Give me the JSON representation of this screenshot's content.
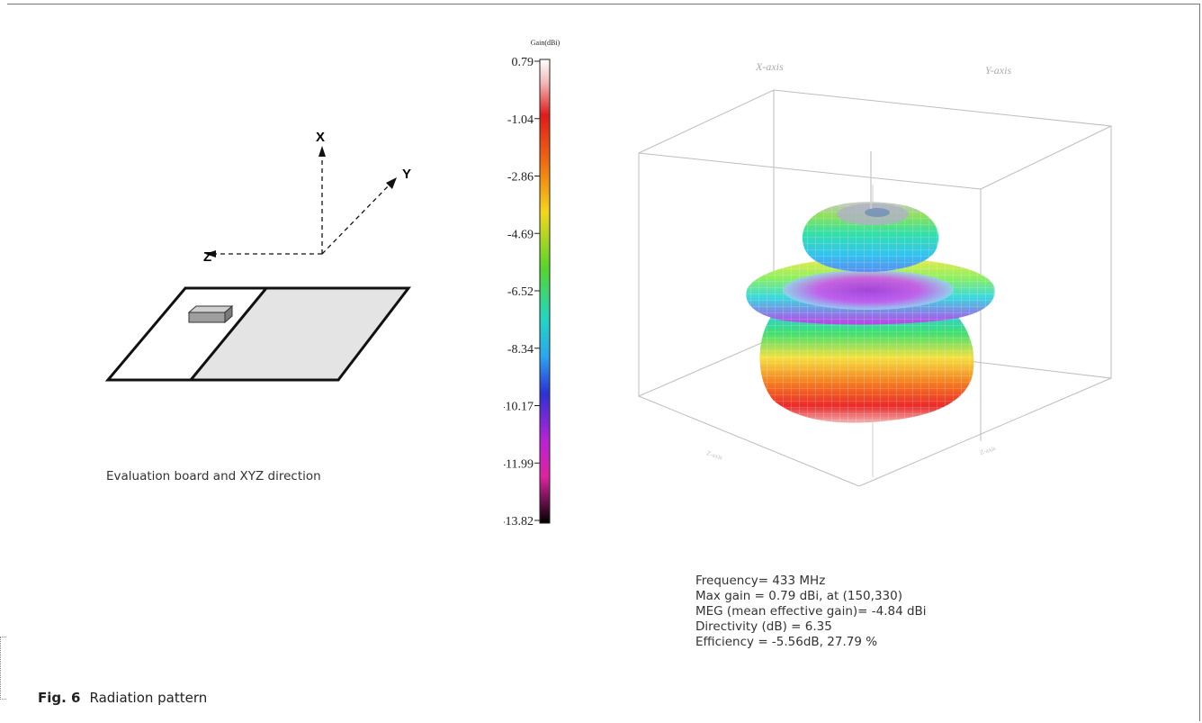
{
  "figure": {
    "number": "Fig. 6",
    "title": "Radiation pattern"
  },
  "left_panel": {
    "axis_x": "X",
    "axis_y": "Y",
    "axis_z": "Z",
    "caption": "Evaluation board and XYZ direction"
  },
  "colorbar": {
    "title": "Gain(dBi)",
    "ticks": [
      "0.79",
      "-1.04",
      "-2.86",
      "-4.69",
      "-6.52",
      "-8.34",
      "-10.17",
      "-11.99",
      "-13.82"
    ]
  },
  "plot3d": {
    "x_axis_label": "X-axis",
    "y_axis_label": "Y-axis"
  },
  "info": {
    "frequency": "Frequency= 433 MHz",
    "max_gain": "Max gain = 0.79 dBi, at (150,330)",
    "meg": "MEG (mean effective gain)= -4.84 dBi",
    "directivity": "Directivity (dB) = 6.35",
    "efficiency": "Efficiency = -5.56dB, 27.79 %"
  }
}
